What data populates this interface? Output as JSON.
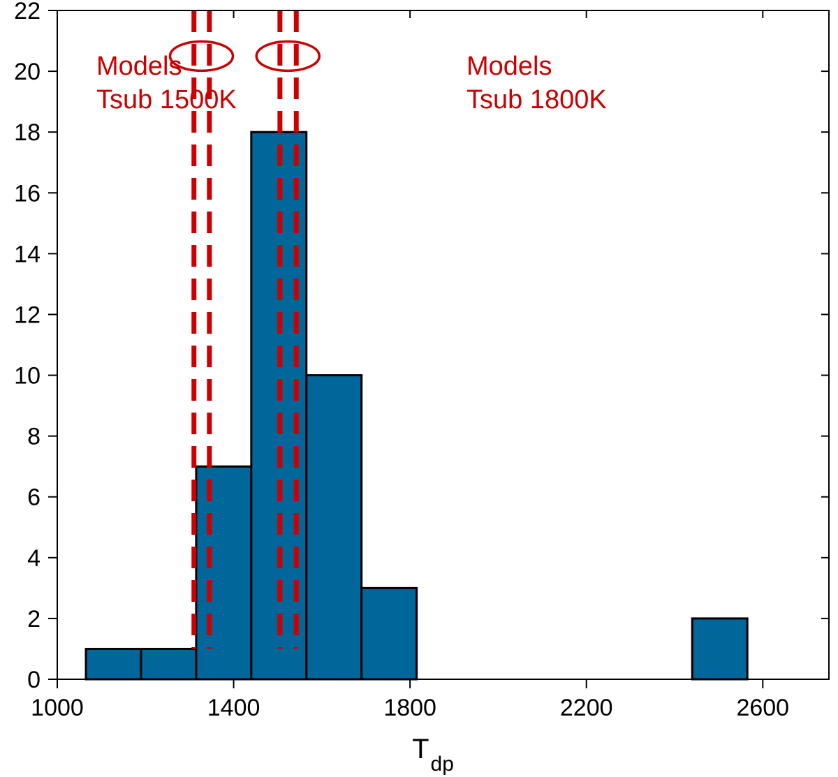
{
  "chart_data": {
    "type": "bar",
    "title": "",
    "xlabel": "T",
    "xlabel_subscript": "dp",
    "ylabel": "",
    "xlim": [
      1000,
      2750
    ],
    "ylim": [
      0,
      22
    ],
    "x_ticks": [
      1000,
      1400,
      1800,
      2200,
      2600
    ],
    "y_ticks": [
      0,
      2,
      4,
      6,
      8,
      10,
      12,
      14,
      16,
      18,
      20,
      22
    ],
    "bins": [
      {
        "start": 1065,
        "end": 1190,
        "count": 1
      },
      {
        "start": 1190,
        "end": 1315,
        "count": 1
      },
      {
        "start": 1315,
        "end": 1440,
        "count": 7
      },
      {
        "start": 1440,
        "end": 1565,
        "count": 18
      },
      {
        "start": 1565,
        "end": 1690,
        "count": 10
      },
      {
        "start": 1690,
        "end": 1815,
        "count": 3
      },
      {
        "start": 1815,
        "end": 1940,
        "count": 0
      },
      {
        "start": 1940,
        "end": 2065,
        "count": 0
      },
      {
        "start": 2065,
        "end": 2190,
        "count": 0
      },
      {
        "start": 2190,
        "end": 2315,
        "count": 0
      },
      {
        "start": 2315,
        "end": 2440,
        "count": 0
      },
      {
        "start": 2440,
        "end": 2565,
        "count": 2
      }
    ],
    "reference_lines": [
      {
        "x": 1310,
        "color": "#cc0000",
        "style": "dashed"
      },
      {
        "x": 1345,
        "color": "#cc0000",
        "style": "dashed"
      },
      {
        "x": 1505,
        "color": "#cc0000",
        "style": "dashed"
      },
      {
        "x": 1542,
        "color": "#cc0000",
        "style": "dashed"
      }
    ],
    "annotations": [
      {
        "lines": [
          "Models",
          "Tsub 1500K"
        ],
        "color": "#cc0000",
        "ellipse_center": [
          1327,
          20.5
        ]
      },
      {
        "lines": [
          "Models",
          "Tsub 1800K"
        ],
        "color": "#cc0000",
        "ellipse_center": [
          1523,
          20.5
        ]
      }
    ],
    "bar_color": "#016699",
    "bar_edge_color": "#000000",
    "grid": false,
    "legend": "none"
  }
}
